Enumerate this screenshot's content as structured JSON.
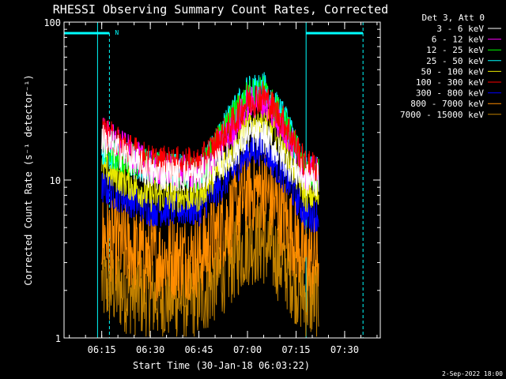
{
  "chart_data": {
    "type": "line",
    "title": "RHESSI Observing Summary Count Rates, Corrected",
    "ylabel": "Corrected Count Rate (s⁻¹ detector⁻¹)",
    "xlabel": "Start Time (30-Jan-18 06:03:22)",
    "yscale": "log",
    "ylim": [
      1,
      100
    ],
    "y_ticks": [
      {
        "v": 1,
        "label": "1"
      },
      {
        "v": 10,
        "label": "10"
      },
      {
        "v": 100,
        "label": "100"
      }
    ],
    "xlim": [
      "06:03:22",
      "07:41:00"
    ],
    "x_ticks": [
      "06:15",
      "06:30",
      "06:45",
      "07:00",
      "07:15",
      "07:30"
    ],
    "legend_placement": "right",
    "legend_title": "Det 3, Att 0",
    "series": [
      {
        "name": "3 - 6 keV",
        "color": "#ffffff",
        "points": [
          [
            "06:15",
            18
          ],
          [
            "06:30",
            11
          ],
          [
            "06:45",
            10.5
          ],
          [
            "06:55",
            14
          ],
          [
            "07:00",
            19
          ],
          [
            "07:05",
            19
          ],
          [
            "07:12",
            13
          ],
          [
            "07:18",
            10
          ]
        ]
      },
      {
        "name": "6 - 12 keV",
        "color": "#ff00ff",
        "points": [
          [
            "06:15",
            20
          ],
          [
            "06:30",
            12
          ],
          [
            "06:45",
            11
          ],
          [
            "06:55",
            20
          ],
          [
            "07:00",
            30
          ],
          [
            "07:05",
            32
          ],
          [
            "07:12",
            20
          ],
          [
            "07:18",
            11
          ]
        ]
      },
      {
        "name": "12 - 25 keV",
        "color": "#00ff00",
        "points": [
          [
            "06:15",
            16
          ],
          [
            "06:30",
            12
          ],
          [
            "06:45",
            11
          ],
          [
            "06:55",
            24
          ],
          [
            "07:00",
            34
          ],
          [
            "07:05",
            36
          ],
          [
            "07:12",
            22
          ],
          [
            "07:18",
            11
          ]
        ]
      },
      {
        "name": "25 - 50 keV",
        "color": "#00ffff",
        "points": [
          [
            "06:15",
            16
          ],
          [
            "06:30",
            12
          ],
          [
            "06:45",
            11
          ],
          [
            "06:55",
            25
          ],
          [
            "07:00",
            36
          ],
          [
            "07:05",
            38
          ],
          [
            "07:12",
            23
          ],
          [
            "07:18",
            11
          ]
        ]
      },
      {
        "name": "50 - 100 keV",
        "color": "#e8e800",
        "points": [
          [
            "06:15",
            12
          ],
          [
            "06:30",
            8
          ],
          [
            "06:45",
            8
          ],
          [
            "06:55",
            15
          ],
          [
            "07:00",
            22
          ],
          [
            "07:05",
            24
          ],
          [
            "07:12",
            15
          ],
          [
            "07:18",
            8
          ]
        ]
      },
      {
        "name": "100 - 300 keV",
        "color": "#ff0000",
        "points": [
          [
            "06:15",
            20
          ],
          [
            "06:30",
            13
          ],
          [
            "06:45",
            12.5
          ],
          [
            "06:55",
            22
          ],
          [
            "07:00",
            32
          ],
          [
            "07:05",
            34
          ],
          [
            "07:12",
            22
          ],
          [
            "07:18",
            12
          ]
        ]
      },
      {
        "name": "300 - 800 keV",
        "color": "#0000ff",
        "points": [
          [
            "06:15",
            9
          ],
          [
            "06:30",
            6.5
          ],
          [
            "06:45",
            6.5
          ],
          [
            "06:55",
            11
          ],
          [
            "07:00",
            15
          ],
          [
            "07:05",
            16
          ],
          [
            "07:12",
            10
          ],
          [
            "07:18",
            6
          ]
        ]
      },
      {
        "name": "800 - 7000 keV",
        "color": "#ff8c00",
        "points": [
          [
            "06:15",
            4.5
          ],
          [
            "06:30",
            3.2
          ],
          [
            "06:45",
            3.3
          ],
          [
            "06:55",
            6
          ],
          [
            "07:00",
            8.5
          ],
          [
            "07:05",
            8.8
          ],
          [
            "07:12",
            5.5
          ],
          [
            "07:18",
            3.2
          ]
        ]
      },
      {
        "name": "7000 - 15000 keV",
        "color": "#c08000",
        "points": [
          [
            "06:15",
            2.2
          ],
          [
            "06:30",
            1.8
          ],
          [
            "06:45",
            1.8
          ],
          [
            "06:55",
            3
          ],
          [
            "07:00",
            4
          ],
          [
            "07:05",
            4
          ],
          [
            "07:12",
            2.8
          ],
          [
            "07:18",
            1.8
          ]
        ]
      }
    ],
    "annotations": {
      "night_marker": "N",
      "boundary_color": "#00ffff"
    },
    "timestamp": "2-Sep-2022 18:00"
  }
}
